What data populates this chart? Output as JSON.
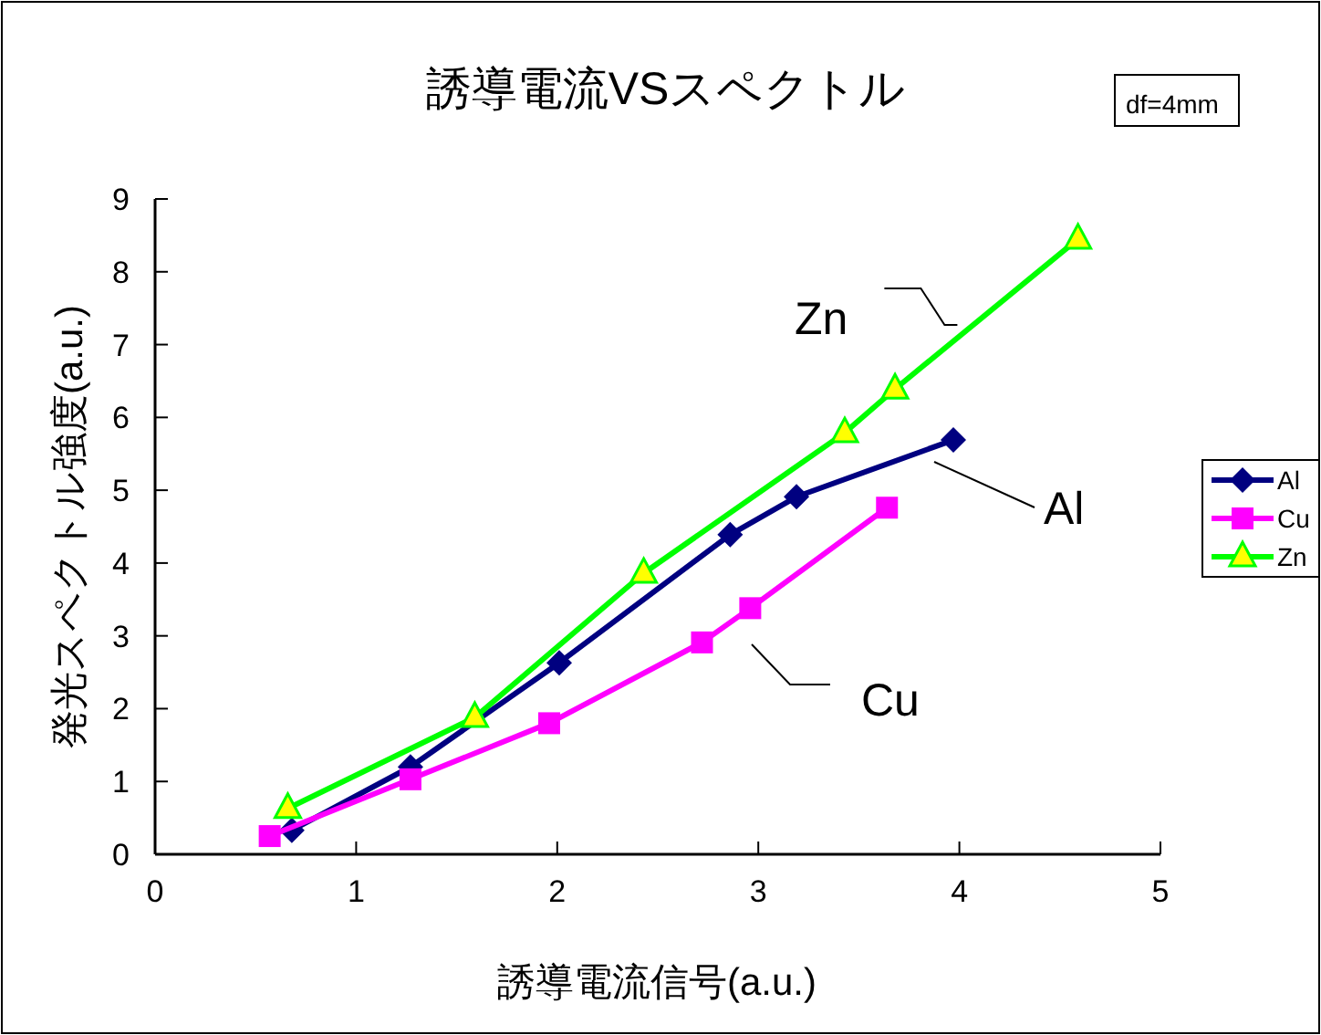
{
  "chart_data": {
    "type": "line",
    "title": "誘導電流VSスペクトル",
    "xlabel": "誘導電流信号(a.u.)",
    "ylabel": "発光スペクトル強度(a.u.)",
    "xlim": [
      0,
      5
    ],
    "xticks": [
      0,
      1,
      2,
      3,
      4,
      5
    ],
    "ylim": [
      0,
      9
    ],
    "yticks": [
      0,
      1,
      2,
      3,
      4,
      5,
      6,
      7,
      8,
      9
    ],
    "grid": false,
    "legend": "right",
    "series": [
      {
        "name": "Al",
        "color": "#000080",
        "marker": "diamond",
        "x": [
          0.68,
          1.27,
          2.01,
          2.86,
          3.19,
          3.97
        ],
        "values": [
          0.33,
          1.2,
          2.63,
          4.39,
          4.91,
          5.69
        ]
      },
      {
        "name": "Cu",
        "color": "#ff00ff",
        "marker": "square",
        "x": [
          0.57,
          1.27,
          1.96,
          2.72,
          2.96,
          3.64
        ],
        "values": [
          0.25,
          1.03,
          1.8,
          2.91,
          3.38,
          4.76
        ]
      },
      {
        "name": "Zn",
        "color": "#00ff00",
        "marker": "triangle",
        "x": [
          0.66,
          1.59,
          2.43,
          3.43,
          3.68,
          4.59
        ],
        "values": [
          0.63,
          1.88,
          3.86,
          5.79,
          6.39,
          8.45
        ]
      }
    ],
    "annotations": [
      {
        "text": "Zn",
        "x": 3.99,
        "y": 7.27
      },
      "Al",
      "Cu",
      "df=4mm"
    ]
  }
}
